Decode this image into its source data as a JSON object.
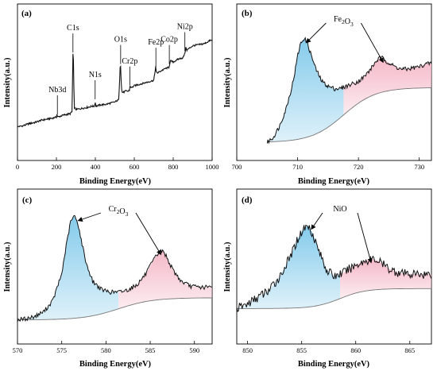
{
  "chart_data": [
    {
      "panel": "(a)",
      "type": "line",
      "xlabel": "Binding Energy(eV)",
      "ylabel": "Intensity(a.u.)",
      "xlim": [
        0,
        1000
      ],
      "xticks": [
        0,
        200,
        400,
        600,
        800,
        1000
      ],
      "ylim": [
        0,
        100
      ],
      "series": [
        {
          "x": [
            0,
            30,
            60,
            90,
            120,
            150,
            180,
            200,
            203,
            206,
            240,
            270,
            280,
            283,
            286,
            289,
            292,
            300,
            330,
            360,
            380,
            396,
            399,
            402,
            420,
            460,
            500,
            520,
            525,
            529,
            532,
            536,
            545,
            555,
            570,
            575,
            578,
            585,
            600,
            640,
            680,
            700,
            706,
            710,
            713,
            720,
            740,
            760,
            778,
            783,
            786,
            800,
            830,
            850,
            858,
            862,
            866,
            870,
            900,
            930,
            960,
            990,
            1000
          ],
          "y": [
            8,
            9,
            11,
            12,
            14,
            15,
            16,
            17,
            20,
            17,
            19,
            20,
            22,
            52,
            87,
            52,
            26,
            24,
            25,
            26,
            27,
            27,
            32,
            27,
            28,
            29,
            31,
            33,
            52,
            71,
            52,
            40,
            40,
            41,
            41,
            42,
            46,
            44,
            46,
            48,
            50,
            51,
            58,
            64,
            58,
            58,
            60,
            62,
            63,
            67,
            69,
            68,
            71,
            72,
            75,
            78,
            82,
            79,
            83,
            84,
            85,
            88,
            88
          ]
        }
      ],
      "annotations": [
        {
          "label": "Nb3d",
          "x": 205
        },
        {
          "label": "C1s",
          "x": 285
        },
        {
          "label": "N1s",
          "x": 399
        },
        {
          "label": "O1s",
          "x": 530
        },
        {
          "label": "Cr2p",
          "x": 577
        },
        {
          "label": "Fe2p",
          "x": 711
        },
        {
          "label": "Co2p",
          "x": 780
        },
        {
          "label": "Ni2p",
          "x": 860
        }
      ]
    },
    {
      "panel": "(b)",
      "type": "line",
      "xlabel": "Binding Energy(eV)",
      "ylabel": "Intensity(a.u.)",
      "xlim": [
        700,
        732
      ],
      "xticks": [
        700,
        710,
        720,
        730
      ],
      "ylim": [
        0,
        100
      ],
      "series": [
        {
          "x": [
            705,
            706,
            707,
            708,
            709,
            709.5,
            710,
            710.5,
            711,
            711.5,
            712,
            713,
            714,
            715,
            716,
            717,
            718,
            719,
            720,
            721,
            722,
            723,
            723.5,
            724,
            725,
            726,
            727,
            728,
            729,
            730,
            731,
            732
          ],
          "y": [
            2,
            6,
            15,
            28,
            46,
            58,
            73,
            83,
            87,
            85,
            77,
            62,
            52,
            48,
            46,
            46,
            48,
            50,
            52,
            56,
            62,
            69,
            71,
            71,
            67,
            64,
            62,
            62,
            63,
            64,
            66,
            67
          ]
        }
      ],
      "annotations": [
        {
          "label": "Fe2O3",
          "peaks": [
            710.9,
            724.2
          ]
        }
      ]
    },
    {
      "panel": "(c)",
      "type": "line",
      "xlabel": "Binding Energy(eV)",
      "ylabel": "Intensity(a.u.)",
      "xlim": [
        570,
        592
      ],
      "xticks": [
        570,
        575,
        580,
        585,
        590
      ],
      "ylim": [
        0,
        100
      ],
      "series": [
        {
          "x": [
            570,
            571,
            572,
            573,
            574,
            575,
            575.5,
            576,
            576.4,
            576.8,
            577.2,
            577.8,
            578.5,
            579.5,
            580.5,
            581.5,
            582.5,
            583.5,
            584.5,
            585.5,
            586,
            586.4,
            586.8,
            587.5,
            588.5,
            589.5,
            590.5,
            592
          ],
          "y": [
            2,
            3,
            5,
            9,
            18,
            40,
            63,
            83,
            88,
            83,
            68,
            48,
            34,
            27,
            25,
            25,
            27,
            31,
            40,
            53,
            58,
            59,
            55,
            44,
            34,
            30,
            29,
            29
          ]
        }
      ],
      "annotations": [
        {
          "label": "Cr2O3",
          "peaks": [
            576.5,
            586.3
          ]
        }
      ]
    },
    {
      "panel": "(d)",
      "type": "line",
      "xlabel": "Binding Energy(eV)",
      "ylabel": "Intensity(a.u.)",
      "xlim": [
        849,
        867
      ],
      "xticks": [
        850,
        855,
        860,
        865
      ],
      "ylim": [
        0,
        100
      ],
      "series": [
        {
          "x": [
            849,
            850,
            851,
            852,
            853,
            854,
            854.6,
            855.2,
            855.6,
            856,
            856.6,
            857.3,
            858,
            859,
            860,
            861,
            861.6,
            862.2,
            863,
            864,
            865,
            866,
            867
          ],
          "y": [
            12,
            16,
            22,
            28,
            40,
            58,
            72,
            82,
            84,
            78,
            62,
            46,
            40,
            44,
            50,
            54,
            55,
            53,
            47,
            43,
            42,
            42,
            42
          ]
        }
      ],
      "annotations": [
        {
          "label": "NiO",
          "peaks": [
            855.6,
            861.5
          ]
        }
      ]
    }
  ]
}
